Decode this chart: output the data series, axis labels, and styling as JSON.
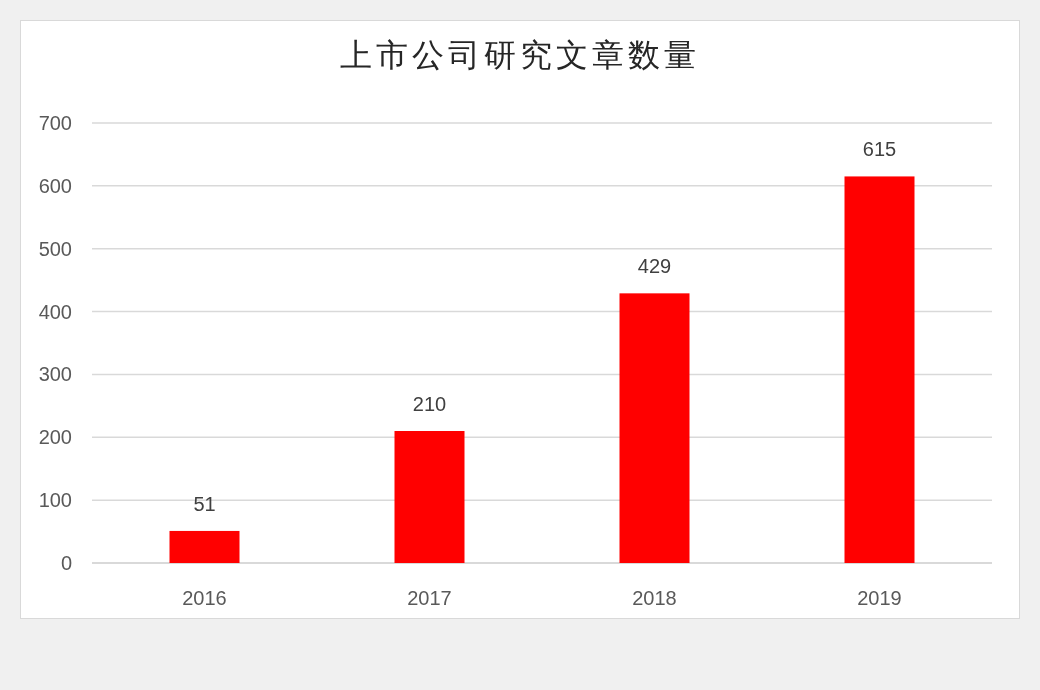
{
  "chart_data": {
    "type": "bar",
    "title": "上市公司研究文章数量",
    "categories": [
      "2016",
      "2017",
      "2018",
      "2019"
    ],
    "values": [
      51,
      210,
      429,
      615
    ],
    "color": "#ff0000",
    "ylim": [
      0,
      700
    ],
    "yticks": [
      0,
      100,
      200,
      300,
      400,
      500,
      600,
      700
    ],
    "grid": "y",
    "data_labels": true
  }
}
